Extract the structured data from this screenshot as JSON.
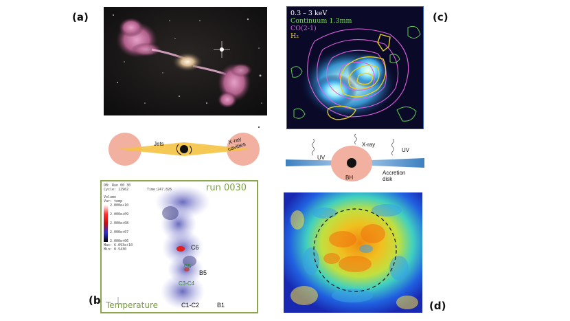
{
  "labels": {
    "a": "(a)",
    "b": "(b)",
    "c": "(c)",
    "d": "(d)"
  },
  "schematic_a": {
    "jets": "Jets",
    "cavities_line1": "X-ray",
    "cavities_line2": "cavities"
  },
  "panel_b": {
    "db": "DB: Run 00 30",
    "cycle": "Cycle: 12962",
    "time": "Time:247.826",
    "run": "run 0030",
    "plot_type": "Volume",
    "var": "Var: temp",
    "scale": [
      "2.000e+10",
      "2.000e+09",
      "2.000e+08",
      "2.000e+07",
      "2.000e+06"
    ],
    "max": "Max: 6.093e+10",
    "min": "Min: 0.5430",
    "clumps": [
      "C6",
      "C5",
      "B5",
      "C3-C4",
      "C1-C2",
      "B1"
    ],
    "temperature": "Temperature"
  },
  "panel_c": {
    "legend": [
      "0.3 – 3 keV",
      "Continuum 1.3mm",
      "CO(2-1)",
      "H₂"
    ],
    "legend_colors": [
      "#ffffff",
      "#7ee05a",
      "#e060e0",
      "#e8d020"
    ]
  },
  "schematic_c": {
    "uv_left": "UV",
    "xray": "X-ray",
    "uv_right": "UV",
    "bh": "BH",
    "accretion_line1": "Accretion",
    "accretion_line2": "disk"
  },
  "colors": {
    "jet": "#f5c242",
    "lobe": "#f2b0a0",
    "disk": "#3d7fc0",
    "sim_border": "#8aa84a"
  }
}
